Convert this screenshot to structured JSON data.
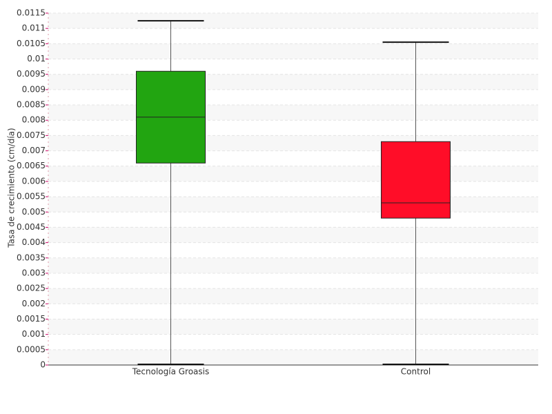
{
  "chart_data": {
    "type": "box",
    "y_label": "Tasa de crecimiento (cm/día)",
    "categories": [
      "Tecnología Groasis",
      "Control"
    ],
    "boxes": [
      {
        "color": "#22a511",
        "min": 0,
        "q1": 0.0066,
        "median": 0.0081,
        "q3": 0.0096,
        "max": 0.01125
      },
      {
        "color": "#ff0d28",
        "min": 0,
        "q1": 0.0048,
        "median": 0.0053,
        "q3": 0.0073,
        "max": 0.01055
      }
    ],
    "ylim": [
      0,
      0.0115
    ],
    "yticks": [
      0,
      0.0005,
      0.001,
      0.0015,
      0.002,
      0.0025,
      0.003,
      0.0035,
      0.004,
      0.0045,
      0.005,
      0.0055,
      0.006,
      0.0065,
      0.007,
      0.0075,
      0.008,
      0.0085,
      0.009,
      0.0095,
      0.01,
      0.0105,
      0.011,
      0.0115
    ],
    "grid": true
  }
}
